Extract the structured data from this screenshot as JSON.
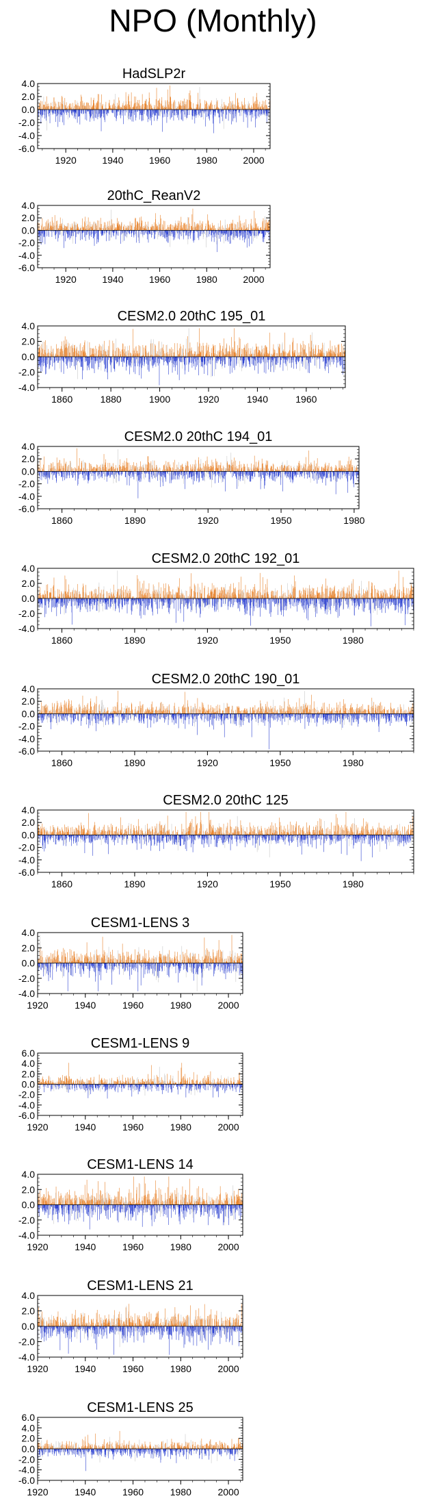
{
  "title": "NPO (Monthly)",
  "colors": {
    "positive": "#e8822a",
    "negative": "#2a3fd0",
    "faint": "#c8c8c8",
    "axis": "#000000"
  },
  "chart_data": [
    {
      "type": "bar",
      "title": "HadSLP2r",
      "ylim": [
        -6.0,
        4.0
      ],
      "yticks": [
        "4.0",
        "2.0",
        "0.0",
        "-2.0",
        "-4.0",
        "-6.0"
      ],
      "xlim": [
        1908,
        2007
      ],
      "xticks": [
        "1920",
        "1940",
        "1960",
        "1980",
        "2000"
      ],
      "seed": 11,
      "amp": 1.0
    },
    {
      "type": "bar",
      "title": "20thC_ReanV2",
      "ylim": [
        -6.0,
        4.0
      ],
      "yticks": [
        "4.0",
        "2.0",
        "0.0",
        "-2.0",
        "-4.0",
        "-6.0"
      ],
      "xlim": [
        1908,
        2007
      ],
      "xticks": [
        "1920",
        "1940",
        "1960",
        "1980",
        "2000"
      ],
      "seed": 23,
      "amp": 1.0
    },
    {
      "type": "bar",
      "title": "CESM2.0 20thC 195_01",
      "ylim": [
        -4.0,
        4.0
      ],
      "yticks": [
        "4.0",
        "2.0",
        "0.0",
        "-2.0",
        "-4.0"
      ],
      "xlim": [
        1850,
        1976
      ],
      "xticks": [
        "1860",
        "1880",
        "1900",
        "1920",
        "1940",
        "1960"
      ],
      "seed": 37,
      "amp": 1.1
    },
    {
      "type": "bar",
      "title": "CESM2.0 20thC 194_01",
      "ylim": [
        -6.0,
        4.0
      ],
      "yticks": [
        "4.0",
        "2.0",
        "0.0",
        "-2.0",
        "-4.0",
        "-6.0"
      ],
      "xlim": [
        1850,
        1982
      ],
      "xticks": [
        "1860",
        "1890",
        "1920",
        "1950",
        "1980"
      ],
      "seed": 41,
      "amp": 1.0
    },
    {
      "type": "bar",
      "title": "CESM2.0 20thC 192_01",
      "ylim": [
        -4.0,
        4.0
      ],
      "yticks": [
        "4.0",
        "2.0",
        "0.0",
        "-2.0",
        "-4.0"
      ],
      "xlim": [
        1850,
        2005
      ],
      "xticks": [
        "1860",
        "1890",
        "1920",
        "1950",
        "1980"
      ],
      "seed": 53,
      "amp": 1.1
    },
    {
      "type": "bar",
      "title": "CESM2.0 20thC 190_01",
      "ylim": [
        -6.0,
        4.0
      ],
      "yticks": [
        "4.0",
        "2.0",
        "0.0",
        "-2.0",
        "-4.0",
        "-6.0"
      ],
      "xlim": [
        1850,
        2005
      ],
      "xticks": [
        "1860",
        "1890",
        "1920",
        "1950",
        "1980"
      ],
      "seed": 67,
      "amp": 1.0
    },
    {
      "type": "bar",
      "title": "CESM2.0 20thC 125",
      "ylim": [
        -6.0,
        4.0
      ],
      "yticks": [
        "4.0",
        "2.0",
        "0.0",
        "-2.0",
        "-4.0",
        "-6.0"
      ],
      "xlim": [
        1850,
        2005
      ],
      "xticks": [
        "1860",
        "1890",
        "1920",
        "1950",
        "1980"
      ],
      "seed": 79,
      "amp": 1.0
    },
    {
      "type": "bar",
      "title": "CESM1-LENS 3",
      "ylim": [
        -4.0,
        4.0
      ],
      "yticks": [
        "4.0",
        "2.0",
        "0.0",
        "-2.0",
        "-4.0"
      ],
      "xlim": [
        1920,
        2006
      ],
      "xticks": [
        "1920",
        "1940",
        "1960",
        "1980",
        "2000"
      ],
      "seed": 83,
      "amp": 1.0
    },
    {
      "type": "bar",
      "title": "CESM1-LENS 9",
      "ylim": [
        -6.0,
        6.0
      ],
      "yticks": [
        "6.0",
        "4.0",
        "2.0",
        "0.0",
        "-2.0",
        "-4.0",
        "-6.0"
      ],
      "xlim": [
        1920,
        2006
      ],
      "xticks": [
        "1920",
        "1940",
        "1960",
        "1980",
        "2000"
      ],
      "seed": 97,
      "amp": 0.9
    },
    {
      "type": "bar",
      "title": "CESM1-LENS 14",
      "ylim": [
        -4.0,
        4.0
      ],
      "yticks": [
        "4.0",
        "2.0",
        "0.0",
        "-2.0",
        "-4.0"
      ],
      "xlim": [
        1920,
        2006
      ],
      "xticks": [
        "1920",
        "1940",
        "1960",
        "1980",
        "2000"
      ],
      "seed": 101,
      "amp": 1.1
    },
    {
      "type": "bar",
      "title": "CESM1-LENS 21",
      "ylim": [
        -4.0,
        4.0
      ],
      "yticks": [
        "4.0",
        "2.0",
        "0.0",
        "-2.0",
        "-4.0"
      ],
      "xlim": [
        1920,
        2006
      ],
      "xticks": [
        "1920",
        "1940",
        "1960",
        "1980",
        "2000"
      ],
      "seed": 113,
      "amp": 1.0
    },
    {
      "type": "bar",
      "title": "CESM1-LENS 25",
      "ylim": [
        -6.0,
        6.0
      ],
      "yticks": [
        "6.0",
        "4.0",
        "2.0",
        "0.0",
        "-2.0",
        "-4.0",
        "-6.0"
      ],
      "xlim": [
        1920,
        2006
      ],
      "xticks": [
        "1920",
        "1940",
        "1960",
        "1980",
        "2000"
      ],
      "seed": 127,
      "amp": 0.9
    }
  ]
}
